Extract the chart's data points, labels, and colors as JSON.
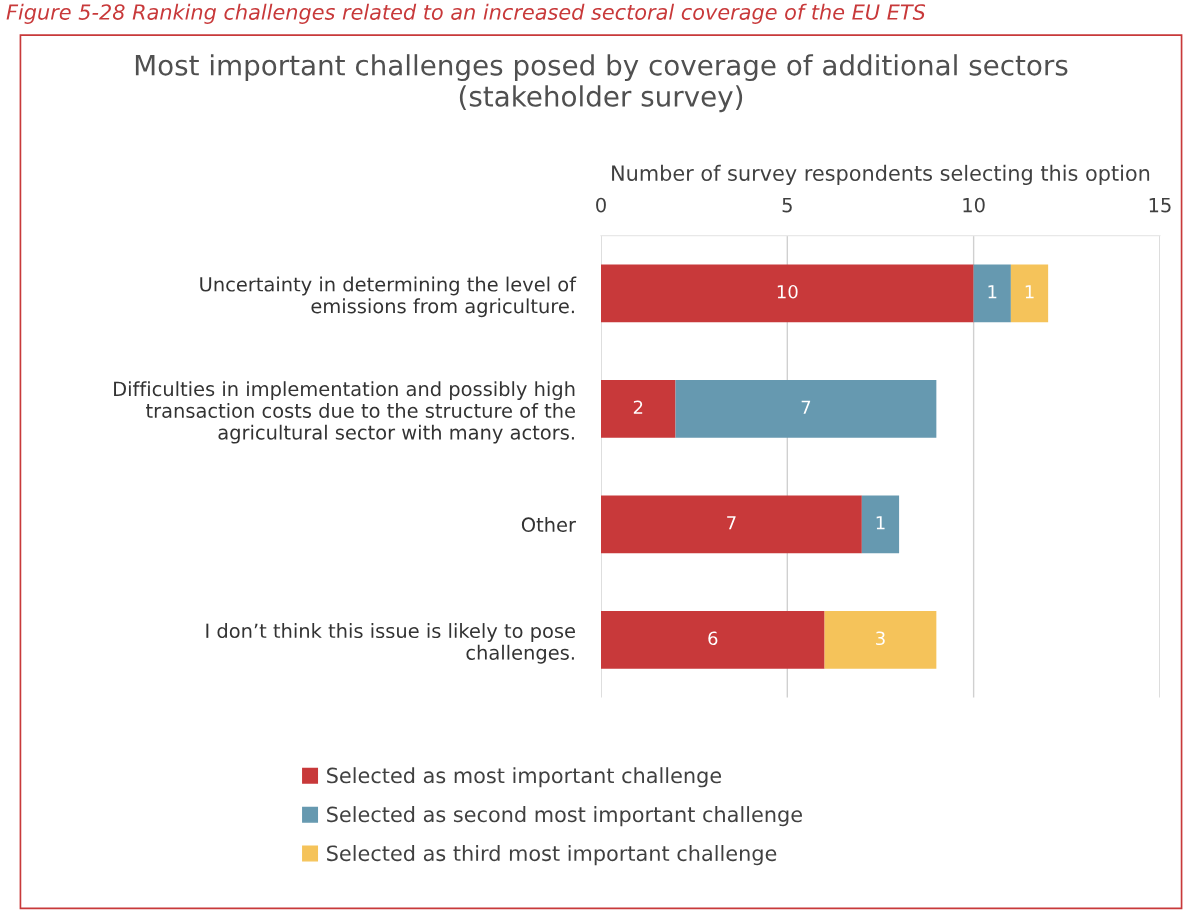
{
  "chart_data": {
    "type": "bar",
    "orientation": "horizontal",
    "stacked": true,
    "title": "Most important challenges posed by coverage of additional sectors (stakeholder survey)",
    "xlabel": "Number of survey respondents selecting this option",
    "annotations": [
      "Figure 5-28 Ranking challenges related to an increased sectoral coverage of the EU ETS"
    ],
    "categories": [
      "Uncertainty in determining the level of emissions from agriculture.",
      "Difficulties in implementation and possibly high transaction costs due to the structure of the agricultural sector with many actors.",
      "Other",
      "I don’t think this issue is likely to pose challenges."
    ],
    "series": [
      {
        "name": "Selected as most important challenge",
        "color": "#c8393a",
        "values": [
          10,
          2,
          7,
          6
        ]
      },
      {
        "name": "Selected as second most important challenge",
        "color": "#6699b0",
        "values": [
          1,
          7,
          1,
          null
        ]
      },
      {
        "name": "Selected as third most important challenge",
        "color": "#f5c35a",
        "values": [
          1,
          null,
          null,
          3
        ]
      }
    ],
    "xlim": [
      0,
      15
    ],
    "xticks": [
      0,
      5,
      10,
      15
    ],
    "grid": "x",
    "legend": "bottom",
    "data_labels": true
  }
}
